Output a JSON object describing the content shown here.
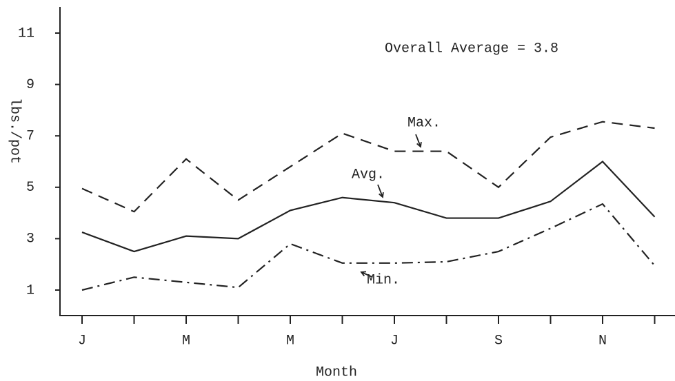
{
  "chart_data": {
    "type": "line",
    "categories": [
      "J",
      null,
      "M",
      null,
      "M",
      null,
      "J",
      null,
      "S",
      null,
      "N",
      null
    ],
    "series": [
      {
        "name": "Max.",
        "color": "#222222",
        "style": "dashed",
        "values": [
          4.95,
          4.05,
          6.1,
          4.5,
          5.8,
          7.1,
          6.4,
          6.4,
          5.0,
          6.95,
          7.55,
          7.3
        ]
      },
      {
        "name": "Avg.",
        "color": "#222222",
        "style": "solid",
        "values": [
          3.25,
          2.5,
          3.1,
          3.0,
          4.1,
          4.6,
          4.4,
          3.8,
          3.8,
          4.45,
          6.0,
          3.85
        ]
      },
      {
        "name": "Min.",
        "color": "#222222",
        "style": "dashdot",
        "values": [
          1.0,
          1.5,
          1.3,
          1.1,
          2.8,
          2.05,
          2.05,
          2.1,
          2.5,
          3.4,
          4.35,
          1.95
        ]
      }
    ],
    "annotations": [
      "Overall Average = 3.8"
    ],
    "xlabel": "Month",
    "ylabel": "lbs./pot",
    "ylim": [
      0,
      12
    ],
    "yticks": [
      1,
      3,
      5,
      7,
      9,
      11
    ]
  }
}
